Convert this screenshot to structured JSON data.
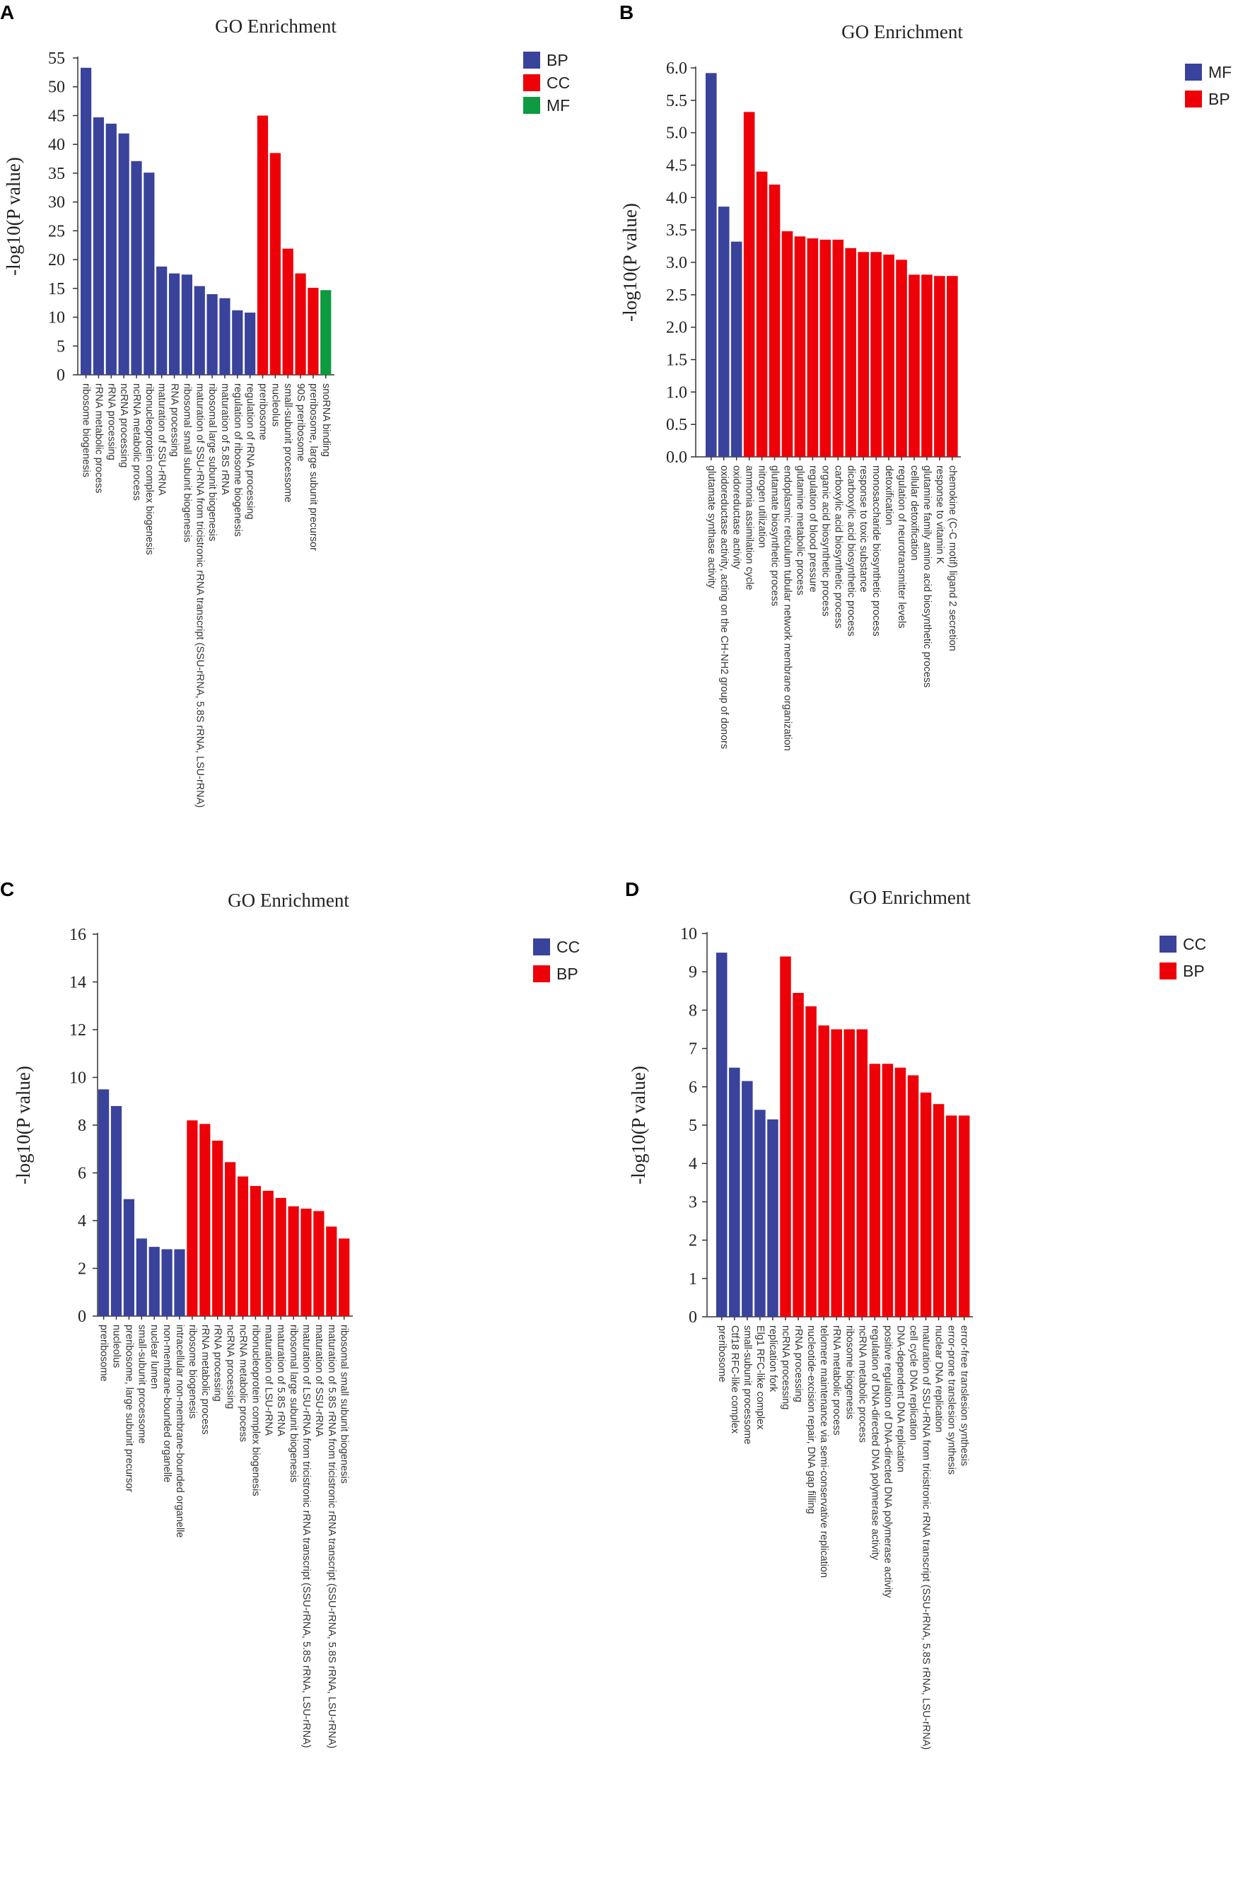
{
  "figure": {
    "panel_labels": [
      "A",
      "B",
      "C",
      "D"
    ]
  },
  "colors": {
    "BP": "#e8000b",
    "CC": "#e8000b",
    "MF": "#0e9a41",
    "blue": "#39439b",
    "red": "#ee0008",
    "green": "#0e9a41"
  },
  "chart_data": [
    {
      "type": "bar",
      "title": "GO Enrichment",
      "ylabel": "-log10(P value)",
      "xlabel": "",
      "ylim": [
        0,
        55
      ],
      "yticks": [
        0,
        5,
        10,
        15,
        20,
        25,
        30,
        35,
        40,
        45,
        50,
        55
      ],
      "ytick_labels": [
        "0",
        "5",
        "10",
        "15",
        "20",
        "25",
        "30",
        "35",
        "40",
        "45",
        "50",
        "55"
      ],
      "legend": [
        {
          "name": "BP",
          "color": "#39439b"
        },
        {
          "name": "CC",
          "color": "#ee0008"
        },
        {
          "name": "MF",
          "color": "#0e9a41"
        }
      ],
      "categories": [
        "ribosome biogenesis",
        "rRNA metabolic process",
        "rRNA processing",
        "ncRNA processing",
        "ncRNA metabolic process",
        "ribonucleoprotein complex biogenesis",
        "maturation of SSU-rRNA",
        "RNA processing",
        "ribosomal small subunit biogenesis",
        "maturation of SSU-rRNA from tricistronic rRNA transcript (SSU-rRNA, 5.8S rRNA, LSU-rRNA)",
        "ribosomal large subunit biogenesis",
        "maturation of 5.8S rRNA",
        "regulation of ribosome biogenesis",
        "regulation of rRNA processing",
        "preribosome",
        "nucleolus",
        "small-subunit processome",
        "90S preribosome",
        "preribosome, large subunit precursor",
        "snoRNA binding"
      ],
      "values": [
        53.3,
        44.7,
        43.6,
        41.9,
        37.1,
        35.1,
        18.8,
        17.6,
        17.4,
        15.4,
        14.0,
        13.3,
        11.2,
        10.8,
        45.0,
        38.5,
        21.9,
        17.6,
        15.1,
        14.7
      ],
      "groups": [
        "BP",
        "BP",
        "BP",
        "BP",
        "BP",
        "BP",
        "BP",
        "BP",
        "BP",
        "BP",
        "BP",
        "BP",
        "BP",
        "BP",
        "CC",
        "CC",
        "CC",
        "CC",
        "CC",
        "MF"
      ]
    },
    {
      "type": "bar",
      "title": "GO Enrichment",
      "ylabel": "-log10(P value)",
      "xlabel": "",
      "ylim": [
        0,
        6
      ],
      "yticks": [
        0,
        0.5,
        1,
        1.5,
        2,
        2.5,
        3,
        3.5,
        4,
        4.5,
        5,
        5.5,
        6
      ],
      "ytick_labels": [
        "0.0",
        "0.5",
        "1.0",
        "1.5",
        "2.0",
        "2.5",
        "3.0",
        "3.5",
        "4.0",
        "4.5",
        "5.0",
        "5.5",
        "6.0"
      ],
      "legend": [
        {
          "name": "MF",
          "color": "#39439b"
        },
        {
          "name": "BP",
          "color": "#ee0008"
        }
      ],
      "categories": [
        "glutamate synthase activity",
        "oxidoreductase activity, acting on the CH-NH2 group of donors",
        "oxidoreductase activity",
        "ammonia assimilation cycle",
        "nitrogen utilization",
        "glutamate biosynthetic process",
        "endoplasmic reticulum tubular network membrane organization",
        "glutamine metabolic process",
        "regulation of blood pressure",
        "organic acid biosynthetic process",
        "carboxylic acid biosynthetic process",
        "dicarboxylic acid biosynthetic process",
        "response to toxic substance",
        "monosaccharide biosynthetic process",
        "detoxification",
        "regulation of neurotransmitter levels",
        "cellular detoxification",
        "glutamine family amino acid biosynthetic process",
        "response to vitamin K",
        "chemokine (C-C motif) ligand 2 secretion"
      ],
      "values": [
        5.92,
        3.86,
        3.32,
        5.32,
        4.4,
        4.2,
        3.48,
        3.4,
        3.37,
        3.35,
        3.35,
        3.22,
        3.16,
        3.16,
        3.12,
        3.04,
        2.81,
        2.81,
        2.79,
        2.79
      ],
      "groups": [
        "MF",
        "MF",
        "MF",
        "BP",
        "BP",
        "BP",
        "BP",
        "BP",
        "BP",
        "BP",
        "BP",
        "BP",
        "BP",
        "BP",
        "BP",
        "BP",
        "BP",
        "BP",
        "BP",
        "BP"
      ]
    },
    {
      "type": "bar",
      "title": "GO Enrichment",
      "ylabel": "-log10(P value)",
      "xlabel": "",
      "ylim": [
        0,
        16
      ],
      "yticks": [
        0,
        2,
        4,
        6,
        8,
        10,
        12,
        14,
        16
      ],
      "ytick_labels": [
        "0",
        "2",
        "4",
        "6",
        "8",
        "10",
        "12",
        "14",
        "16"
      ],
      "legend": [
        {
          "name": "CC",
          "color": "#39439b"
        },
        {
          "name": "BP",
          "color": "#ee0008"
        }
      ],
      "categories": [
        "preribosome",
        "nucleolus",
        "preribosome, large subunit precursor",
        "small-subunit processome",
        "nuclear lumen",
        "non-membrane-bounded organelle",
        "intracellular non-membrane-bounded organelle",
        "ribosome biogenesis",
        "rRNA metabolic process",
        "rRNA processing",
        "ncRNA processing",
        "ncRNA metabolic process",
        "ribonucleoprotein complex biogenesis",
        "maturation of LSU-rRNA",
        "maturation of 5.8S rRNA",
        "ribosomal large subunit biogenesis",
        "maturation of LSU-rRNA from tricistronic rRNA transcript (SSU-rRNA, 5.8S rRNA, LSU-rRNA)",
        "maturation of SSU-rRNA",
        "maturation of 5.8S rRNA from tricistronic rRNA transcript (SSU-rRNA, 5.8S rRNA, LSU-rRNA)",
        "ribosomal small subunit biogenesis"
      ],
      "values": [
        9.5,
        8.8,
        4.9,
        3.25,
        2.9,
        2.8,
        2.8,
        8.2,
        8.05,
        7.35,
        6.45,
        5.85,
        5.45,
        5.25,
        4.95,
        4.6,
        4.5,
        4.4,
        3.75,
        3.25
      ],
      "groups": [
        "CC",
        "CC",
        "CC",
        "CC",
        "CC",
        "CC",
        "CC",
        "BP",
        "BP",
        "BP",
        "BP",
        "BP",
        "BP",
        "BP",
        "BP",
        "BP",
        "BP",
        "BP",
        "BP",
        "BP"
      ]
    },
    {
      "type": "bar",
      "title": "GO Enrichment",
      "ylabel": "-log10(P value)",
      "xlabel": "",
      "ylim": [
        0,
        10
      ],
      "yticks": [
        0,
        1,
        2,
        3,
        4,
        5,
        6,
        7,
        8,
        9,
        10
      ],
      "ytick_labels": [
        "0",
        "1",
        "2",
        "3",
        "4",
        "5",
        "6",
        "7",
        "8",
        "9",
        "10"
      ],
      "legend": [
        {
          "name": "CC",
          "color": "#39439b"
        },
        {
          "name": "BP",
          "color": "#ee0008"
        }
      ],
      "categories": [
        "preribosome",
        "Ctf18 RFC-like complex",
        "small-subunit processome",
        "Elg1 RFC-like complex",
        "replication fork",
        "ncRNA processing",
        "rRNA processing",
        "nucleotide-excision repair, DNA gap filling",
        "telomere maintenance via semi-conservative replication",
        "rRNA metabolic process",
        "ribosome biogenesis",
        "ncRNA metabolic process",
        "regulation of DNA-directed DNA polymerase activity",
        "positive regulation of DNA-directed DNA polymerase activity",
        "DNA-dependent DNA replication",
        "cell cycle DNA replication",
        "maturation of SSU-rRNA from tricistronic rRNA transcript (SSU-rRNA, 5.8S rRNA, LSU-rRNA)",
        "nuclear DNA replication",
        "error-prone translesion synthesis",
        "error-free translesion synthesis"
      ],
      "values": [
        9.5,
        6.5,
        6.15,
        5.4,
        5.15,
        9.4,
        8.45,
        8.1,
        7.6,
        7.5,
        7.5,
        7.5,
        6.6,
        6.6,
        6.5,
        6.3,
        5.85,
        5.55,
        5.25,
        5.25
      ],
      "groups": [
        "CC",
        "CC",
        "CC",
        "CC",
        "CC",
        "BP",
        "BP",
        "BP",
        "BP",
        "BP",
        "BP",
        "BP",
        "BP",
        "BP",
        "BP",
        "BP",
        "BP",
        "BP",
        "BP",
        "BP"
      ]
    }
  ]
}
